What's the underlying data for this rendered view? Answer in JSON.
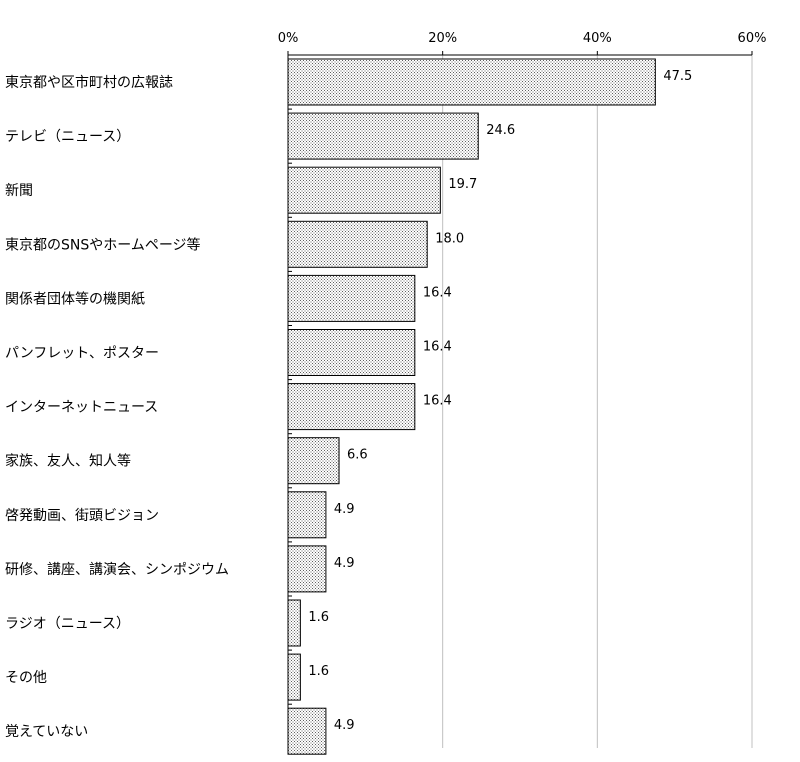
{
  "chart_data": {
    "type": "bar",
    "orientation": "horizontal",
    "categories": [
      "東京都や区市町村の広報誌",
      "テレビ（ニュース）",
      "新聞",
      "東京都のSNSやホームページ等",
      "関係者団体等の機関紙",
      "パンフレット、ポスター",
      "インターネットニュース",
      "家族、友人、知人等",
      "啓発動画、街頭ビジョン",
      "研修、講座、講演会、シンポジウム",
      "ラジオ（ニュース）",
      "その他",
      "覚えていない"
    ],
    "values": [
      47.5,
      24.6,
      19.7,
      18.0,
      16.4,
      16.4,
      16.4,
      6.6,
      4.9,
      4.9,
      1.6,
      1.6,
      4.9
    ],
    "value_labels": [
      "47.5",
      "24.6",
      "19.7",
      "18.0",
      "16.4",
      "16.4",
      "16.4",
      "6.6",
      "4.9",
      "4.9",
      "1.6",
      "1.6",
      "4.9"
    ],
    "xticks": [
      "0%",
      "20%",
      "40%",
      "60%"
    ],
    "xlim": [
      0,
      60
    ],
    "grid": true,
    "legend": false,
    "bar_fill": "#c8c8c8",
    "bar_stroke": "#000000",
    "grid_color": "#c0c0c0"
  }
}
